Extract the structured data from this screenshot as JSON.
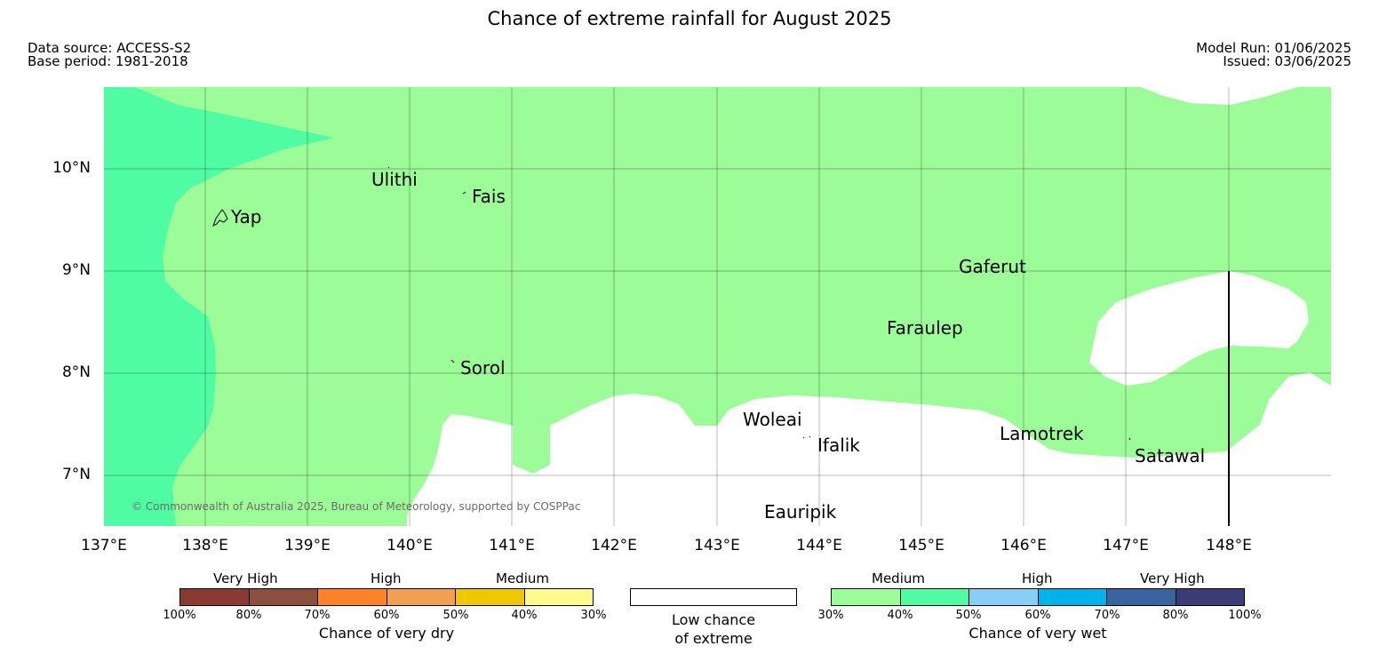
{
  "title": "Chance of extreme rainfall for August 2025",
  "data_source": "Data source: ACCESS-S2",
  "base_period": "Base period: 1981-2018",
  "model_run": "Model Run: 01/06/2025",
  "issued": "Issued: 03/06/2025",
  "copyright": "© Commonwealth of Australia 2025, Bureau of Meteorology, supported by COSPPac",
  "lat_labels": [
    "10°N",
    "9°N",
    "8°N",
    "7°N"
  ],
  "lon_labels": [
    "137°E",
    "138°E",
    "139°E",
    "140°E",
    "141°E",
    "142°E",
    "143°E",
    "144°E",
    "145°E",
    "146°E",
    "147°E",
    "148°E"
  ],
  "places": {
    "yap": "Yap",
    "ulithi": "Ulithi",
    "fais": "Fais",
    "sorol": "Sorol",
    "gaferut": "Gaferut",
    "faraulep": "Faraulep",
    "woleai": "Woleai",
    "ifalik": "Ifalik",
    "lamotrek": "Lamotrek",
    "satawal": "Satawal",
    "eauripik": "Eauripik"
  },
  "colors": {
    "wet_30_40": "#9bfc98",
    "wet_40_50": "#50fca3",
    "wet_50_60": "#87cefa",
    "wet_60_70": "#00b4eb",
    "wet_70_80": "#3a64a0",
    "wet_80_100": "#3c3c78",
    "dry_100_80": "#8b3a32",
    "dry_80_70": "#8c4f3c",
    "dry_70_60": "#ff8228",
    "dry_60_50": "#f0a050",
    "dry_50_40": "#f0c800",
    "dry_40_30": "#fffa8c",
    "low_chance": "#ffffff"
  },
  "legend": {
    "dry": {
      "categories": [
        "Very High",
        "High",
        "Medium"
      ],
      "ticks": [
        "100%",
        "80%",
        "70%",
        "60%",
        "50%",
        "40%",
        "30%"
      ],
      "caption": "Chance of very dry"
    },
    "low": {
      "line1": "Low chance",
      "line2": "of extreme"
    },
    "wet": {
      "categories": [
        "Medium",
        "High",
        "Very High"
      ],
      "ticks": [
        "30%",
        "40%",
        "50%",
        "60%",
        "70%",
        "80%",
        "100%"
      ],
      "caption": "Chance of very wet"
    }
  }
}
